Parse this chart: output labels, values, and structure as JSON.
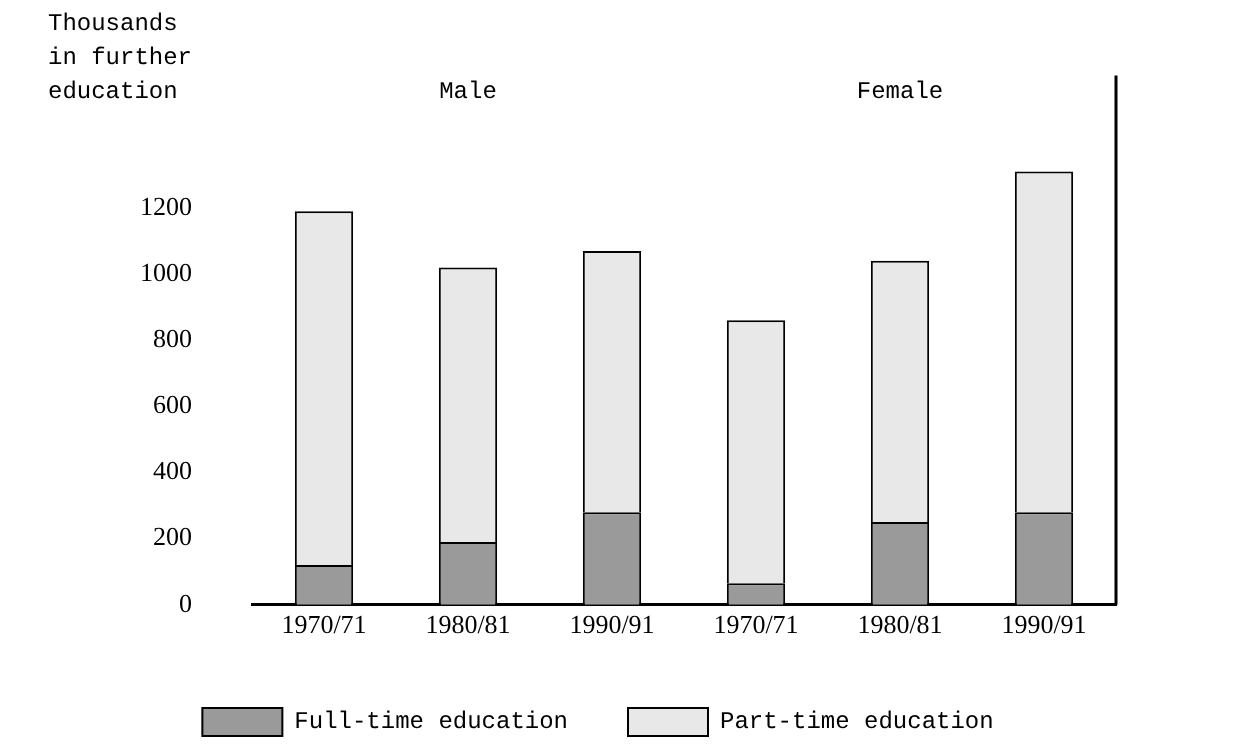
{
  "chart_data": {
    "type": "bar",
    "stacked": true,
    "ylabel": "Thousands in further education",
    "annotations": [
      "Male",
      "Female"
    ],
    "categories": [
      "1970/71",
      "1980/81",
      "1990/91",
      "1970/71",
      "1980/81",
      "1990/91"
    ],
    "series": [
      {
        "name": "Full-time education",
        "color": "#9a9a9a",
        "values": [
          120,
          190,
          280,
          65,
          250,
          280
        ]
      },
      {
        "name": "Part-time education",
        "color": "#e8e8e8",
        "values": [
          1070,
          830,
          790,
          795,
          790,
          1030
        ]
      }
    ],
    "ylim": [
      0,
      1600
    ],
    "yticks": [
      0,
      200,
      400,
      600,
      800,
      1000,
      1200
    ],
    "grid": false,
    "legend": "bottom"
  }
}
